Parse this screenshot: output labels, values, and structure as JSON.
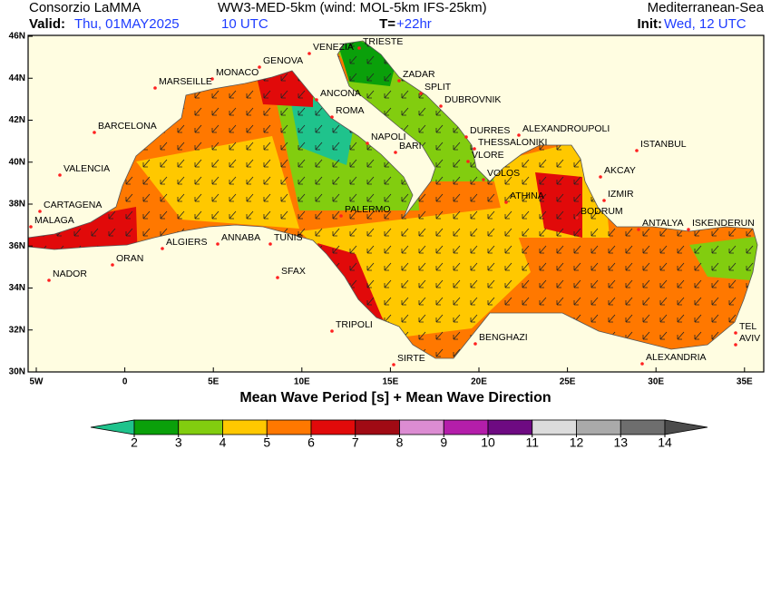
{
  "header": {
    "org": "Consorzio LaMMA",
    "model": "WW3-MED-5km (wind: MOL-5km IFS-25km)",
    "region": "Mediterranean-Sea",
    "valid_label": "Valid:",
    "valid_date": "Thu, 01MAY2025",
    "valid_time": "10 UTC",
    "step_label": "T=",
    "step": "+22hr",
    "init_label": "Init:",
    "init": "Wed, 12 UTC"
  },
  "map": {
    "lon_ticks": [
      "5W",
      "0",
      "5E",
      "10E",
      "15E",
      "20E",
      "25E",
      "30E",
      "35E"
    ],
    "lat_ticks": [
      "46N",
      "44N",
      "42N",
      "40N",
      "38N",
      "36N",
      "34N",
      "32N",
      "30N"
    ],
    "caption": "Mean Wave Period [s] + Mean Wave Direction",
    "cities": [
      "VENEZIA",
      "TRIESTE",
      "GENOVA",
      "MONACO",
      "MARSEILLE",
      "ZADAR",
      "SPLIT",
      "ANCONA",
      "DUBROVNIK",
      "ROMA",
      "BARCELONA",
      "DURRES",
      "ALEXANDROUPOLI",
      "THESSALONIKI",
      "ISTANBUL",
      "NAPOLI",
      "BARI",
      "VLORE",
      "VALENCIA",
      "VOLOS",
      "AKCAY",
      "ATHINA",
      "IZMIR",
      "CARTAGENA",
      "PALERMO",
      "BODRUM",
      "MALAGA",
      "ANTALYA",
      "ISKENDERUN",
      "ALGIERS",
      "ANNABA",
      "TUNIS",
      "ORAN",
      "SFAX",
      "NADOR",
      "TRIPOLI",
      "TEL",
      "AVIV",
      "BENGHAZI",
      "ALEXANDRIA",
      "SIRTE"
    ]
  },
  "colorbar": {
    "ticks": [
      2,
      3,
      4,
      5,
      6,
      7,
      8,
      9,
      10,
      11,
      12,
      13,
      14
    ],
    "under_color": "#1fc38c",
    "colors": [
      "#0aa00a",
      "#82cd0f",
      "#ffc800",
      "#ff7800",
      "#e10a0a",
      "#a00a14",
      "#dc8cd2",
      "#b41eaa",
      "#6e0a82",
      "#dcdcdc",
      "#aaaaaa",
      "#6e6e6e"
    ],
    "over_color": "#4b4b4b"
  }
}
